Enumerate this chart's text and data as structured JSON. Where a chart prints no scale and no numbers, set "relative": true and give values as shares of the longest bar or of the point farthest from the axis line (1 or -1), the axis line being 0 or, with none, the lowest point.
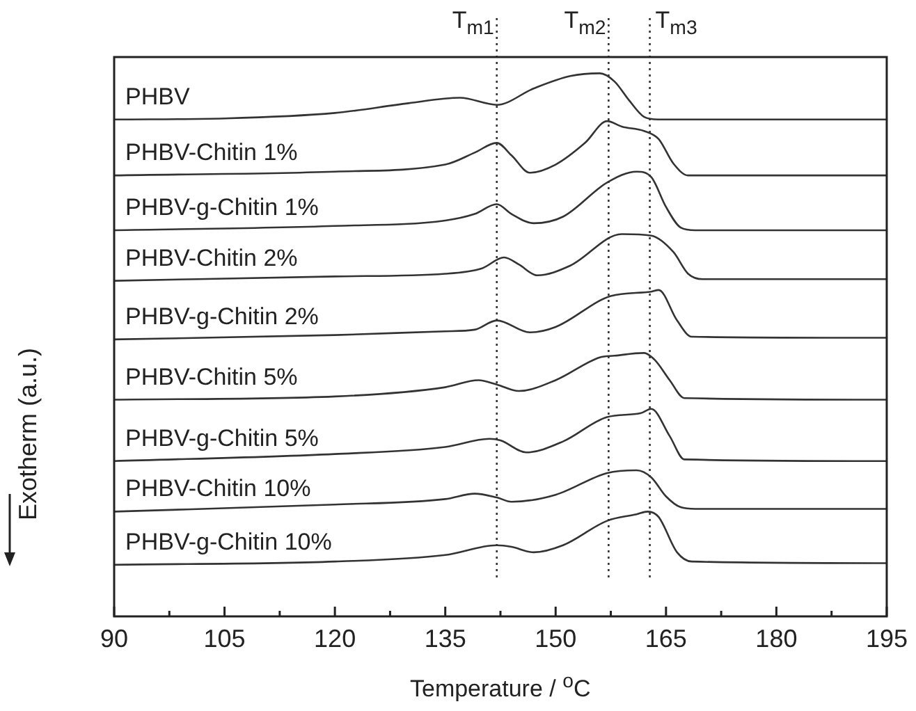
{
  "chart_data": {
    "type": "line",
    "relative": true,
    "xlabel": "Temperature / $^{o}$C",
    "ylabel": "Exotherm (a.u.)",
    "xlim": [
      90,
      195
    ],
    "xticks": [
      90,
      {
        "value": 97.5,
        "label": null
      },
      105,
      {
        "value": 112.5,
        "label": null
      },
      120,
      {
        "value": 127.5,
        "label": null
      },
      135,
      {
        "value": 142.5,
        "label": null
      },
      150,
      {
        "value": 157.5,
        "label": null
      },
      165,
      {
        "value": 172.5,
        "label": null
      },
      180,
      {
        "value": 187.5,
        "label": null
      },
      195
    ],
    "grid": false,
    "legend": false,
    "marker": "none",
    "line_style": "solid",
    "ref_lines": [
      {
        "axis": "x",
        "value": 142,
        "label": "T$_{m1}$",
        "line_style": "dotted",
        "color": "#333333"
      },
      {
        "axis": "x",
        "value": 157.2,
        "label": "T$_{m2}$",
        "line_style": "dotted",
        "color": "#333333"
      },
      {
        "axis": "x",
        "value": 162.8,
        "label": "T$_{m3}$",
        "line_style": "dotted",
        "color": "#333333"
      }
    ],
    "series": [
      {
        "name": "PHBV",
        "color": "#333333",
        "x": [
          90,
          105,
          120,
          130,
          137,
          142,
          147,
          152,
          156,
          158,
          160,
          162,
          164,
          195
        ],
        "values": [
          0.915,
          0.917,
          0.927,
          0.945,
          0.955,
          0.942,
          0.972,
          0.995,
          1,
          0.985,
          0.95,
          0.92,
          0.915,
          0.915
        ]
      },
      {
        "name": "PHBV-Chitin 1%",
        "color": "#333333",
        "x": [
          90,
          120,
          135,
          139,
          142,
          144,
          146.5,
          150,
          154,
          157,
          159,
          162,
          164,
          166,
          168,
          195
        ],
        "values": [
          0.812,
          0.819,
          0.832,
          0.854,
          0.872,
          0.849,
          0.817,
          0.832,
          0.872,
          0.912,
          0.902,
          0.894,
          0.879,
          0.834,
          0.812,
          0.812
        ]
      },
      {
        "name": "PHBV-g-Chitin 1%",
        "color": "#333333",
        "x": [
          90,
          120,
          135,
          139,
          142,
          144,
          147,
          151,
          157,
          161,
          163,
          165,
          167,
          169,
          195
        ],
        "values": [
          0.711,
          0.719,
          0.729,
          0.741,
          0.759,
          0.741,
          0.724,
          0.736,
          0.799,
          0.819,
          0.809,
          0.754,
          0.716,
          0.711,
          0.711
        ]
      },
      {
        "name": "PHBV-Chitin 2%",
        "color": "#333333",
        "x": [
          90,
          120,
          135,
          140,
          143,
          145,
          147.5,
          152,
          159,
          163,
          166,
          168,
          170,
          195
        ],
        "values": [
          0.618,
          0.626,
          0.631,
          0.641,
          0.661,
          0.648,
          0.628,
          0.646,
          0.704,
          0.701,
          0.671,
          0.631,
          0.621,
          0.621
        ]
      },
      {
        "name": "PHBV-g-Chitin 2%",
        "color": "#333333",
        "x": [
          90,
          120,
          135,
          139,
          142,
          146.5,
          150,
          157.5,
          163,
          164,
          166.5,
          168.5,
          195
        ],
        "values": [
          0.51,
          0.518,
          0.525,
          0.528,
          0.545,
          0.523,
          0.533,
          0.59,
          0.598,
          0.601,
          0.545,
          0.515,
          0.513
        ]
      },
      {
        "name": "PHBV-Chitin 5%",
        "color": "#333333",
        "x": [
          90,
          120,
          135,
          139.5,
          142,
          145,
          150,
          156,
          158,
          162,
          163.5,
          165.5,
          167.5,
          195
        ],
        "values": [
          0.399,
          0.405,
          0.422,
          0.435,
          0.427,
          0.415,
          0.435,
          0.477,
          0.48,
          0.485,
          0.472,
          0.435,
          0.402,
          0.399
        ]
      },
      {
        "name": "PHBV-g-Chitin 5%",
        "color": "#333333",
        "x": [
          90,
          120,
          135,
          141,
          142.5,
          146,
          151,
          157,
          161.5,
          163,
          165.5,
          167.5,
          195
        ],
        "values": [
          0.286,
          0.299,
          0.312,
          0.327,
          0.324,
          0.302,
          0.322,
          0.367,
          0.374,
          0.382,
          0.332,
          0.289,
          0.286
        ]
      },
      {
        "name": "PHBV-Chitin 10%",
        "color": "#333333",
        "x": [
          90,
          120,
          135,
          139,
          142,
          144,
          150,
          157,
          161,
          163,
          165,
          167,
          169,
          195
        ],
        "values": [
          0.193,
          0.206,
          0.216,
          0.226,
          0.219,
          0.211,
          0.224,
          0.264,
          0.269,
          0.256,
          0.221,
          0.201,
          0.198,
          0.198
        ]
      },
      {
        "name": "PHBV-g-Chitin 10%",
        "color": "#333333",
        "x": [
          90,
          120,
          135,
          142,
          144,
          147,
          151,
          157,
          161,
          162.5,
          164,
          166.5,
          168.5,
          195
        ],
        "values": [
          0.095,
          0.101,
          0.113,
          0.131,
          0.128,
          0.118,
          0.131,
          0.176,
          0.188,
          0.193,
          0.183,
          0.118,
          0.101,
          0.098
        ]
      }
    ]
  }
}
